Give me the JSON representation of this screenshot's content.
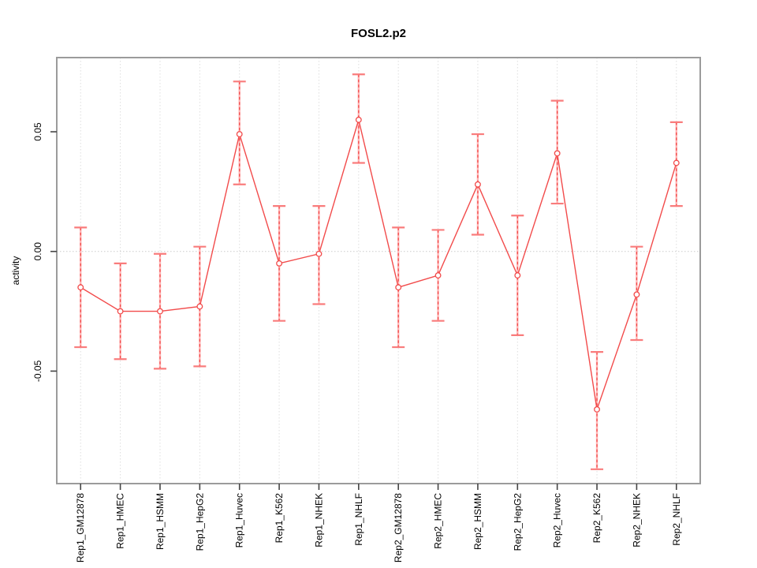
{
  "window": {
    "background": "#ffffff"
  },
  "chart_data": {
    "type": "line",
    "title": "FOSL2.p2",
    "xlabel": "",
    "ylabel": "activity",
    "legend_position": "none",
    "grid": {
      "vertical_dotted": true,
      "zero_line_dotted": true
    },
    "categories": [
      "Rep1_GM12878",
      "Rep1_HMEC",
      "Rep1_HSMM",
      "Rep1_HepG2",
      "Rep1_Huvec",
      "Rep1_K562",
      "Rep1_NHEK",
      "Rep1_NHLF",
      "Rep2_GM12878",
      "Rep2_HMEC",
      "Rep2_HSMM",
      "Rep2_HepG2",
      "Rep2_Huvec",
      "Rep2_K562",
      "Rep2_NHEK",
      "Rep2_NHLF"
    ],
    "series": [
      {
        "name": "activity",
        "marker": "open-circle",
        "values": [
          -0.015,
          -0.025,
          -0.025,
          -0.023,
          0.049,
          -0.005,
          -0.001,
          0.055,
          -0.015,
          -0.01,
          0.028,
          -0.01,
          0.041,
          -0.066,
          -0.018,
          0.037
        ],
        "ci_low": [
          -0.04,
          -0.045,
          -0.049,
          -0.048,
          0.028,
          -0.029,
          -0.022,
          0.037,
          -0.04,
          -0.029,
          0.007,
          -0.035,
          0.02,
          -0.091,
          -0.037,
          0.019
        ],
        "ci_high": [
          0.01,
          -0.005,
          -0.001,
          0.002,
          0.071,
          0.019,
          0.019,
          0.074,
          0.01,
          0.009,
          0.049,
          0.015,
          0.063,
          -0.042,
          0.002,
          0.054
        ]
      }
    ],
    "yticks": [
      -0.05,
      0,
      0.05
    ],
    "ytick_labels": [
      "-0.05",
      "0.00",
      "0.05"
    ],
    "ylim": [
      -0.097,
      0.081
    ],
    "xlim": [
      0.4,
      16.6
    ],
    "colors": {
      "line": "#f24b4b",
      "marker_stroke": "#f24b4b",
      "marker_fill": "#ffffff",
      "error_stem": "#f24b4b",
      "error_stem_underlay": "#ffb5b5",
      "error_cap": "#f97c7c",
      "gridline": "#dedede",
      "zero_line": "#cccccc",
      "plot_border": "#9b9b9b",
      "tick": "#454545",
      "text": "#000000"
    }
  }
}
